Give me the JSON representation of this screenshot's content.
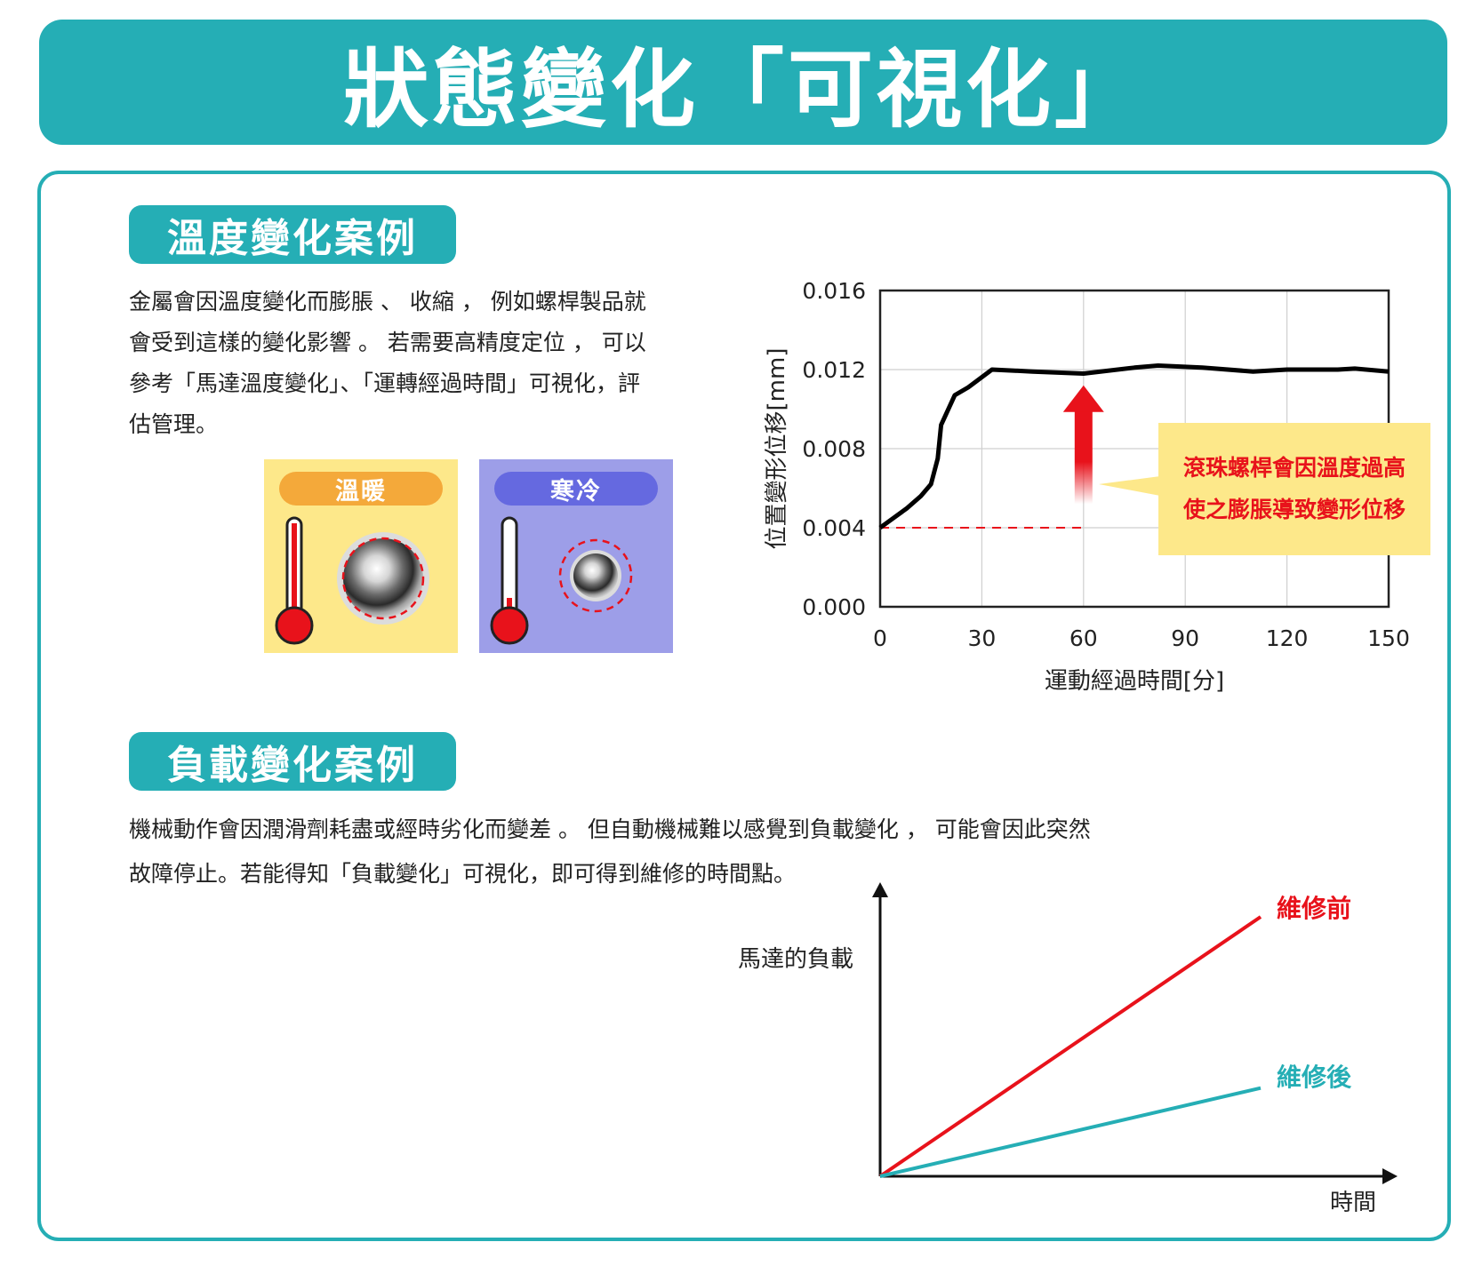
{
  "title": "狀態變化「可視化」",
  "temperature_section": {
    "label": "溫度變化案例",
    "lines": [
      "金屬會因溫度變化而膨脹 、 收縮 ， 例如螺桿製品就",
      "會受到這樣的變化影響 。 若需要高精度定位 ， 可以",
      "參考「馬達溫度變化」、「運轉經過時間」可視化，評",
      "估管理。"
    ],
    "warm_label": "溫暖",
    "cold_label": "寒冷",
    "colors": {
      "warm_bg": "#fde88a",
      "warm_pill": "#f4a93a",
      "cold_bg": "#9d9ee8",
      "cold_pill": "#6569e0",
      "thermo_red": "#e8121b"
    }
  },
  "load_section": {
    "label": "負載變化案例",
    "lines": [
      "機械動作會因潤滑劑耗盡或經時劣化而變差 。 但自動機械難以感覺到負載變化 ， 可能會因此突然",
      "故障停止。若能得知「負載變化」可視化，即可得到維修的時間點。"
    ]
  },
  "chart_data": [
    {
      "type": "line",
      "title": "",
      "xlabel": "運動經過時間[分]",
      "ylabel": "位置變形位移[mm]",
      "xlim": [
        0,
        150
      ],
      "ylim": [
        0,
        0.016
      ],
      "x_ticks": [
        "0",
        "30",
        "60",
        "90",
        "120",
        "150"
      ],
      "y_ticks": [
        "0.000",
        "0.004",
        "0.008",
        "0.012",
        "0.016"
      ],
      "grid": true,
      "series": [
        {
          "color": "#000000",
          "x": [
            0,
            4,
            8,
            12,
            15,
            17,
            18,
            22,
            26,
            33,
            45,
            60,
            75,
            82,
            95,
            110,
            120,
            135,
            140,
            150
          ],
          "y": [
            0.004,
            0.0045,
            0.005,
            0.0056,
            0.0062,
            0.0075,
            0.0092,
            0.0107,
            0.0111,
            0.012,
            0.0119,
            0.0118,
            0.0121,
            0.0122,
            0.0121,
            0.0119,
            0.012,
            0.012,
            0.01205,
            0.0119
          ]
        }
      ],
      "reference_line": {
        "y": 0.004,
        "x": [
          0,
          60
        ],
        "color": "#e8121b",
        "style": "dashed"
      },
      "arrow": {
        "x": 60,
        "y_from": 0.0052,
        "y_to": 0.0112,
        "color": "#e8121b"
      },
      "annotation": {
        "lines": [
          "滾珠螺桿會因溫度過高",
          "使之膨脹導致變形位移"
        ],
        "color": "#e8121b",
        "background": "#fde88a"
      }
    },
    {
      "type": "line",
      "title": "",
      "xlabel": "時間",
      "ylabel": "馬達的負載",
      "axis_ticks": false,
      "series": [
        {
          "name": "維修前",
          "color": "#e8121b",
          "x": [
            0,
            1
          ],
          "y": [
            0,
            1
          ]
        },
        {
          "name": "維修後",
          "color": "#25aeb5",
          "x": [
            0,
            1
          ],
          "y": [
            0,
            0.34
          ]
        }
      ]
    }
  ]
}
